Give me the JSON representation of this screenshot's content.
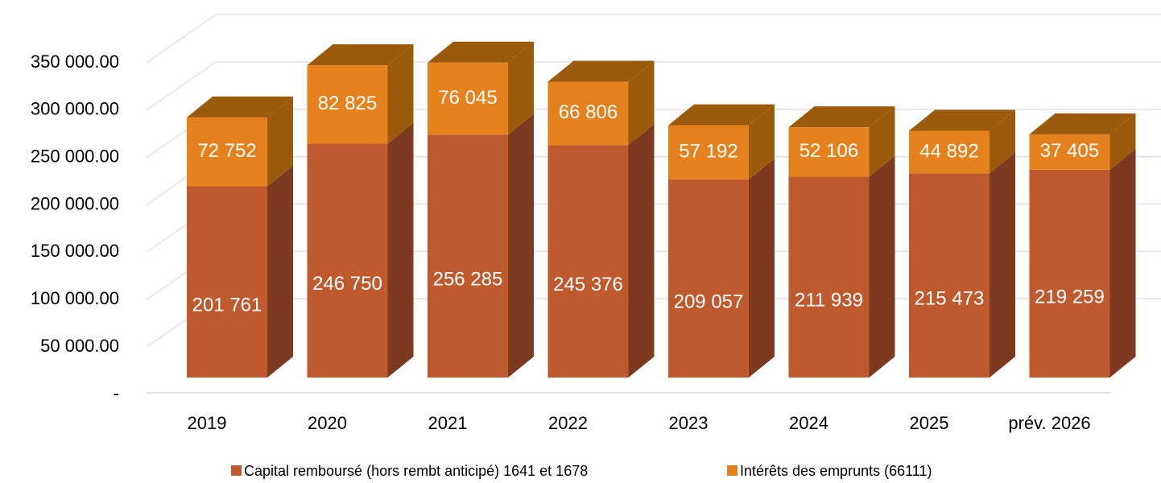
{
  "chart_data": {
    "type": "bar3d_stacked",
    "categories": [
      "2019",
      "2020",
      "2021",
      "2022",
      "2023",
      "2024",
      "2025",
      "prév. 2026"
    ],
    "series": [
      {
        "name": "Capital remboursé (hors rembt anticipé) 1641 et 1678",
        "color": "#be5a2e",
        "side_color": "#7e3a1f",
        "values": [
          201761,
          246750,
          256285,
          245376,
          209057,
          211939,
          215473,
          219259
        ],
        "value_labels": [
          "201 761",
          "246 750",
          "256 285",
          "245 376",
          "209 057",
          "211 939",
          "215 473",
          "219 259"
        ]
      },
      {
        "name": "Intérêts des emprunts (66111)",
        "color": "#e6821e",
        "side_color": "#9c5a0d",
        "values": [
          72752,
          82825,
          76045,
          66806,
          57192,
          52106,
          44892,
          37405
        ],
        "value_labels": [
          "72 752",
          "82 825",
          "76 045",
          "66 806",
          "57 192",
          "52 106",
          "44 892",
          "37 405"
        ]
      }
    ],
    "ylim": [
      0,
      350000
    ],
    "yticks": [
      {
        "value": 0,
        "label": "-"
      },
      {
        "value": 50000,
        "label": "50 000.00"
      },
      {
        "value": 100000,
        "label": "100 000.00"
      },
      {
        "value": 150000,
        "label": "150 000.00"
      },
      {
        "value": 200000,
        "label": "200 000.00"
      },
      {
        "value": 250000,
        "label": "250 000.00"
      },
      {
        "value": 300000,
        "label": "300 000.00"
      },
      {
        "value": 350000,
        "label": "350 000.00"
      }
    ],
    "grid": true,
    "legend": "bottom"
  }
}
